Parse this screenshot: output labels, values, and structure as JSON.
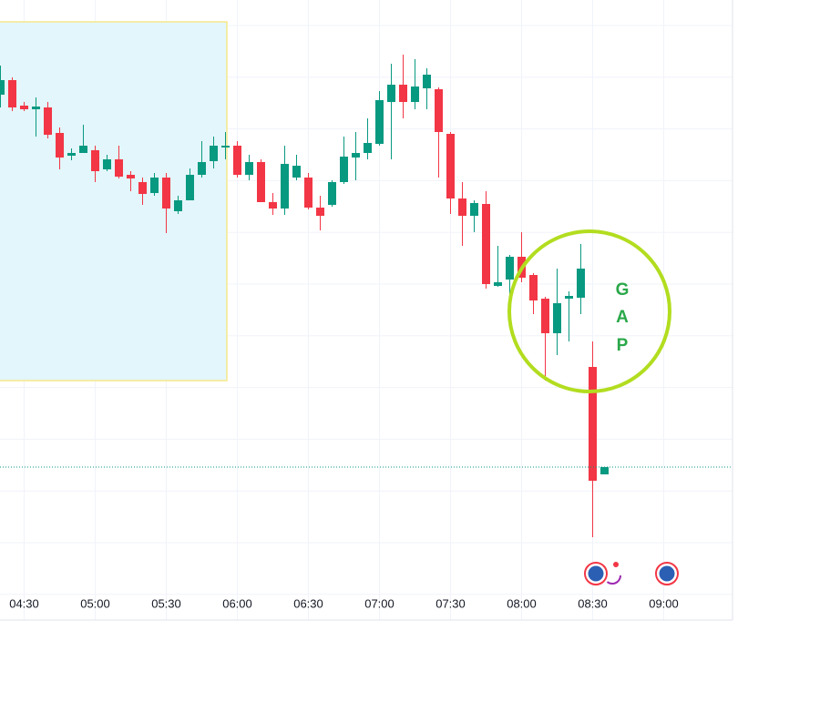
{
  "chart_data": {
    "type": "candlestick",
    "categories": [
      "04:20",
      "04:25",
      "04:30",
      "04:35",
      "04:40",
      "04:45",
      "04:50",
      "04:55",
      "05:00",
      "05:05",
      "05:10",
      "05:15",
      "05:20",
      "05:25",
      "05:30",
      "05:35",
      "05:40",
      "05:45",
      "05:50",
      "05:55",
      "06:00",
      "06:05",
      "06:10",
      "06:15",
      "06:20",
      "06:25",
      "06:30",
      "06:35",
      "06:40",
      "06:45",
      "06:50",
      "06:55",
      "07:00",
      "07:05",
      "07:10",
      "07:15",
      "07:20",
      "07:25",
      "07:30",
      "07:35",
      "07:40",
      "07:45",
      "07:50",
      "07:55",
      "08:00",
      "08:05",
      "08:10",
      "08:15",
      "08:20",
      "08:25",
      "08:30",
      "08:35"
    ],
    "open": [
      576,
      592,
      564,
      560,
      562,
      534,
      509,
      512,
      515,
      494,
      505,
      488,
      480,
      468,
      485,
      448,
      460,
      488,
      503,
      518,
      520,
      488,
      502,
      458,
      451,
      485,
      485,
      452,
      455,
      480,
      507,
      512,
      522,
      568,
      587,
      568,
      583,
      582,
      533,
      462,
      443,
      456,
      366,
      373,
      398,
      378,
      352,
      314,
      352,
      353,
      277,
      159
    ],
    "high": [
      608,
      595,
      568,
      573,
      568,
      540,
      517,
      543,
      520,
      510,
      520,
      492,
      485,
      490,
      490,
      465,
      495,
      525,
      530,
      535,
      525,
      510,
      505,
      468,
      520,
      510,
      490,
      465,
      482,
      530,
      535,
      550,
      580,
      610,
      620,
      615,
      605,
      584,
      535,
      480,
      460,
      470,
      410,
      400,
      425,
      380,
      354,
      385,
      360,
      412,
      305,
      167
    ],
    "low": [
      562,
      558,
      558,
      530,
      528,
      494,
      504,
      512,
      480,
      492,
      484,
      470,
      455,
      465,
      424,
      445,
      460,
      485,
      495,
      505,
      485,
      482,
      458,
      444,
      444,
      482,
      450,
      427,
      453,
      478,
      482,
      505,
      520,
      505,
      550,
      560,
      560,
      485,
      445,
      410,
      425,
      363,
      365,
      340,
      370,
      335,
      262,
      290,
      305,
      335,
      90,
      159
    ],
    "close": [
      592,
      562,
      560,
      563,
      532,
      507,
      512,
      520,
      492,
      505,
      486,
      484,
      467,
      485,
      451,
      460,
      488,
      502,
      520,
      520,
      488,
      502,
      458,
      451,
      500,
      498,
      452,
      443,
      480,
      508,
      512,
      523,
      570,
      587,
      568,
      585,
      598,
      535,
      462,
      443,
      457,
      368,
      370,
      398,
      375,
      350,
      314,
      347,
      355,
      385,
      152,
      167
    ],
    "up_color": "#089981",
    "down_color": "#f23645",
    "ylim": [
      0,
      680
    ],
    "xticks": [
      "04:30",
      "05:00",
      "05:30",
      "06:00",
      "06:30",
      "07:00",
      "07:30",
      "08:00",
      "08:30",
      "09:00"
    ],
    "annotation": [
      "G",
      "A",
      "P"
    ]
  }
}
